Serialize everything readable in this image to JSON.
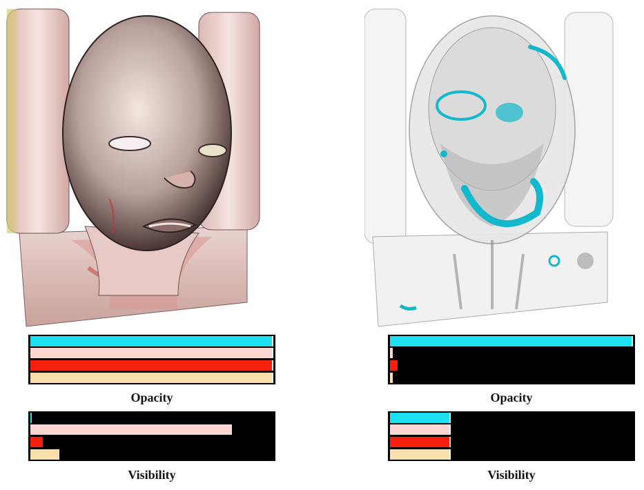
{
  "colors": {
    "cyan": "#1fe0f0",
    "pink": "#fbd6d2",
    "red": "#f5200e",
    "tan": "#f8dfac",
    "panel": "#000000"
  },
  "panels": [
    {
      "id": "left",
      "opacity": {
        "caption": "Opacity",
        "values": [
          1.0,
          1.0,
          1.0,
          1.0
        ]
      },
      "visibility": {
        "caption": "Visibility",
        "values": [
          0.005,
          0.83,
          0.05,
          0.12
        ]
      }
    },
    {
      "id": "right",
      "opacity": {
        "caption": "Opacity",
        "values": [
          1.0,
          0.01,
          0.03,
          0.01
        ]
      },
      "visibility": {
        "caption": "Visibility",
        "values": [
          0.25,
          0.25,
          0.25,
          0.25
        ]
      }
    }
  ]
}
